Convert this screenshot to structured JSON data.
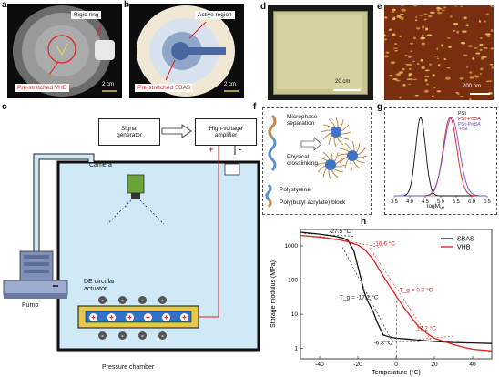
{
  "panels": {
    "a": {
      "label": "a",
      "rigid_ring": "Rigid ring",
      "prestretched": "Pre-stretched VHB",
      "scale": "2 cm"
    },
    "b": {
      "label": "b",
      "active_region": "Active region",
      "prestretched": "Pre-stretched SBAS",
      "scale": "2 cm"
    },
    "c": {
      "label": "c",
      "signal_generator": "Signal\ngenerator",
      "amplifier": "High-voltage\namplifier",
      "camera": "Camera",
      "pump": "Pump",
      "actuator": "DE circular\nactuator",
      "chamber": "Pressure chamber",
      "plus": "+",
      "minus": "-"
    },
    "d": {
      "label": "d",
      "scale": "20 cm"
    },
    "e": {
      "label": "e",
      "scale": "200 nm"
    },
    "f": {
      "label": "f",
      "microphase": "Microphase\nseparation",
      "physical": "Physical\ncrosslinking",
      "polystyrene": "Polystyrene",
      "pba": "Poly(butyl acrylate) block"
    },
    "g": {
      "label": "g",
      "legend": [
        "PSt",
        "PSt-PnBA",
        "PSt-PnBA\n-PSt"
      ],
      "xlabel": "logM",
      "xlabel_sub": "W",
      "xticks": [
        "3.5",
        "4.0",
        "4.5",
        "5.0",
        "5.5",
        "6.0",
        "6.5"
      ]
    },
    "h": {
      "label": "h"
    }
  },
  "colors": {
    "red": "#e0201b",
    "black": "#111111",
    "blue": "#2f73c9",
    "water": "#cfe9f7",
    "gold": "#e6c84b"
  },
  "chart_data": {
    "type": "line",
    "title": "",
    "xlabel": "Temperature (°C)",
    "ylabel": "Storage modulus (MPa)",
    "xlim": [
      -50,
      50
    ],
    "ylim": [
      0.5,
      3000
    ],
    "yscale": "log",
    "xticks": [
      -40,
      -20,
      0,
      20,
      40
    ],
    "yticks": [
      1,
      10,
      100,
      1000
    ],
    "legend": "top-right",
    "series": [
      {
        "name": "SBAS",
        "color": "#111111",
        "x": [
          -50,
          -40,
          -32,
          -28,
          -25,
          -22,
          -20,
          -18,
          -17,
          -15,
          -12,
          -10,
          -8,
          -6.8,
          -4,
          0,
          5,
          10,
          20,
          30,
          40,
          50
        ],
        "y": [
          2500,
          2200,
          1900,
          1700,
          1400,
          700,
          250,
          90,
          50,
          25,
          12,
          6,
          3.5,
          2.5,
          2.2,
          2.0,
          1.9,
          1.8,
          1.6,
          1.5,
          1.45,
          1.4
        ]
      },
      {
        "name": "VHB",
        "color": "#e0201b",
        "x": [
          -50,
          -40,
          -30,
          -25,
          -20,
          -16.6,
          -12,
          -8,
          -4,
          0,
          0.3,
          4,
          8,
          12,
          17.2,
          20,
          25,
          30,
          35,
          40,
          50
        ],
        "y": [
          2000,
          1800,
          1500,
          1300,
          1050,
          800,
          400,
          170,
          75,
          35,
          32,
          16,
          8,
          4.2,
          2.5,
          2.0,
          1.6,
          1.3,
          1.1,
          0.95,
          0.85
        ]
      }
    ],
    "annotations": [
      {
        "text": "-27.5 °C",
        "x": -27.5,
        "y": 1750,
        "color": "#111111"
      },
      {
        "text": "-16.6 °C",
        "x": -16.6,
        "y": 800,
        "color": "#e0201b"
      },
      {
        "text": "T_g = -17.2 °C",
        "x": -17.2,
        "y": 40,
        "color": "#111111"
      },
      {
        "text": "T_g = 0.3 °C",
        "x": 0.3,
        "y": 35,
        "color": "#e0201b"
      },
      {
        "text": "17.2 °C",
        "x": 17.2,
        "y": 2.5,
        "color": "#e0201b"
      },
      {
        "text": "-6.8 °C",
        "x": -6.8,
        "y": 2.5,
        "color": "#111111"
      }
    ]
  }
}
